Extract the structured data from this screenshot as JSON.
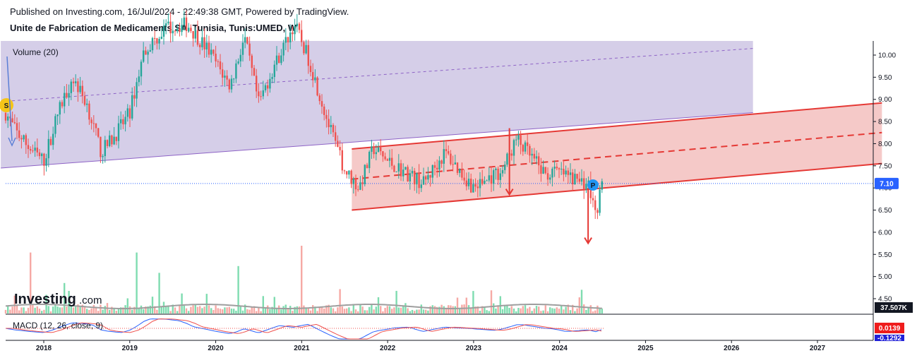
{
  "header": {
    "published": "Published on Investing.com, 16/Jul/2024 - 22:49:38 GMT, Powered by TradingView.",
    "title": "Unite de Fabrication de Medicaments SA, Tunisia, Tunis:UMED, W"
  },
  "branding": {
    "logo_main": "Investing",
    "logo_suffix": ".com"
  },
  "chart_data": {
    "type": "candlestick",
    "instrument": "Tunis:UMED",
    "interval": "W",
    "x_range": [
      "2017-07",
      "2027-10"
    ],
    "y_range": [
      4.2,
      10.3
    ],
    "x_ticks": [
      "2018",
      "2019",
      "2020",
      "2021",
      "2022",
      "2023",
      "2024",
      "2025",
      "2026",
      "2027"
    ],
    "y_ticks": [
      "10.00",
      "9.50",
      "9.00",
      "8.50",
      "8.00",
      "7.50",
      "7.00",
      "6.50",
      "6.00",
      "5.50",
      "5.00",
      "4.50"
    ],
    "last_price": "7.10",
    "price_path": [
      [
        "2017-07",
        8.9
      ],
      [
        "2017-09",
        8.3
      ],
      [
        "2017-11",
        7.9
      ],
      [
        "2018-01",
        7.6
      ],
      [
        "2018-03",
        8.7
      ],
      [
        "2018-05",
        9.5
      ],
      [
        "2018-07",
        8.9
      ],
      [
        "2018-09",
        7.8
      ],
      [
        "2018-11",
        8.2
      ],
      [
        "2019-01",
        8.7
      ],
      [
        "2019-03",
        10.1
      ],
      [
        "2019-06",
        10.6
      ],
      [
        "2019-09",
        10.7
      ],
      [
        "2019-12",
        10.1
      ],
      [
        "2020-03",
        9.3
      ],
      [
        "2020-05",
        10.4
      ],
      [
        "2020-07",
        8.9
      ],
      [
        "2020-09",
        9.7
      ],
      [
        "2020-12",
        10.7
      ],
      [
        "2021-02",
        9.9
      ],
      [
        "2021-05",
        8.3
      ],
      [
        "2021-07",
        7.4
      ],
      [
        "2021-09",
        7.0
      ],
      [
        "2021-11",
        7.9
      ],
      [
        "2022-01",
        7.6
      ],
      [
        "2022-04",
        7.3
      ],
      [
        "2022-06",
        7.1
      ],
      [
        "2022-09",
        7.8
      ],
      [
        "2022-11",
        7.4
      ],
      [
        "2023-01",
        7.0
      ],
      [
        "2023-03",
        7.2
      ],
      [
        "2023-05",
        7.4
      ],
      [
        "2023-07",
        8.1
      ],
      [
        "2023-09",
        7.7
      ],
      [
        "2023-11",
        7.3
      ],
      [
        "2024-01",
        7.35
      ],
      [
        "2024-03",
        7.2
      ],
      [
        "2024-05",
        7.1
      ],
      [
        "2024-06",
        6.4
      ],
      [
        "2024-07",
        7.1
      ]
    ],
    "volume": {
      "label": "Volume (20)",
      "last_value": "37.507K",
      "spikes": [
        [
          "2017-11",
          0.9
        ],
        [
          "2019-02",
          0.9
        ],
        [
          "2019-05",
          0.6
        ],
        [
          "2021-01",
          1.0
        ],
        [
          "2020-04",
          0.7
        ],
        [
          "2018-04",
          0.45
        ],
        [
          "2024-04",
          0.35
        ]
      ]
    },
    "macd": {
      "label": "MACD (12, 26, close, 9)",
      "value_1": "0.0139",
      "value_2": "-0.1292"
    },
    "annotations": {
      "split_marker": "S",
      "pivot_marker": "P",
      "upper_channel": {
        "from": [
          "2017-07",
          7.45
        ],
        "to": [
          "2026-04",
          8.7
        ],
        "dashed_mid_from": [
          "2017-07",
          8.95
        ],
        "dashed_mid_to": [
          "2026-04",
          10.15
        ]
      },
      "lower_channel": {
        "from": [
          "2021-08",
          6.5
        ],
        "to": [
          "2027-10",
          7.55
        ],
        "top_from": [
          "2021-08",
          7.88
        ],
        "top_to": [
          "2027-10",
          8.92
        ],
        "mid_from": [
          "2021-08",
          7.2
        ],
        "mid_to": [
          "2027-10",
          8.25
        ]
      },
      "arrows": [
        {
          "from": [
            "2023-06",
            8.35
          ],
          "to": [
            "2023-06",
            6.85
          ]
        },
        {
          "from": [
            "2024-04",
            7.0
          ],
          "to": [
            "2024-04",
            5.75
          ]
        }
      ]
    },
    "colors": {
      "up": "#26a69a",
      "down": "#ef5350",
      "channel_upper_fill": "#d5cee8",
      "channel_lower_fill": "#f5c9c8",
      "channel_upper_line": "#8e63c6",
      "channel_lower_line": "#e53935",
      "macd_line": "#2962ff",
      "signal_line": "#ef5350",
      "price_tag": "#2962ff",
      "macd_tag_1": "#ef1c1c",
      "macd_tag_2": "#2020d8"
    }
  }
}
